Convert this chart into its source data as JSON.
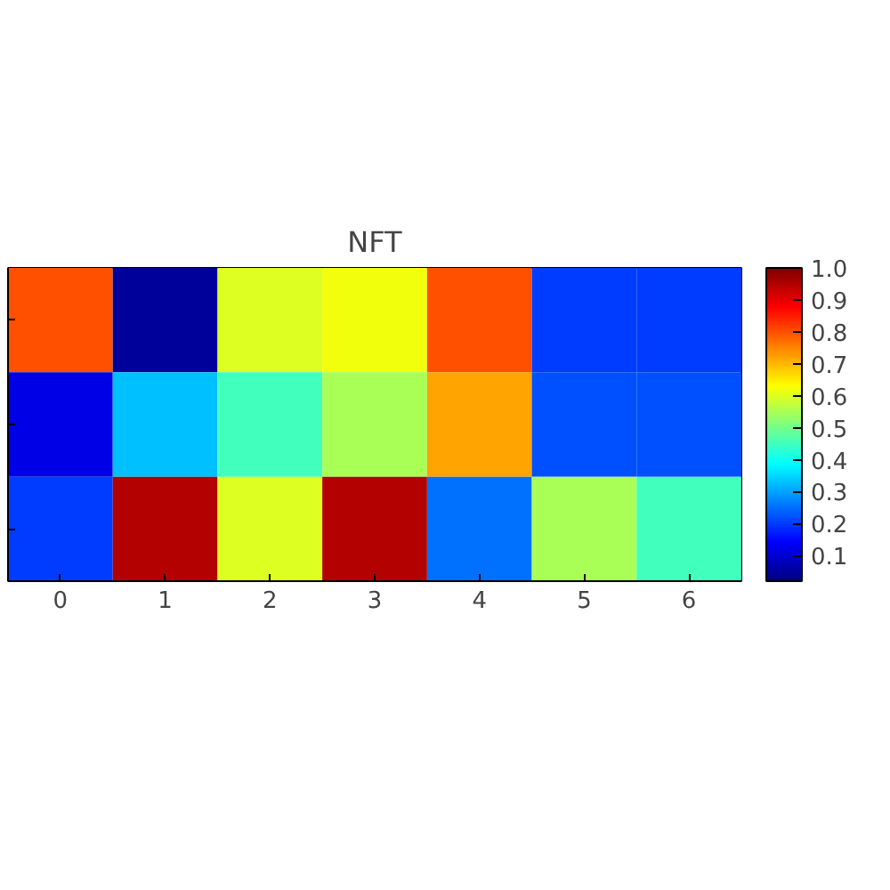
{
  "chart_data": {
    "type": "heatmap",
    "title": "NFT",
    "categories": [
      "0",
      "1",
      "2",
      "3",
      "4",
      "5",
      "6"
    ],
    "y_categories": [
      null,
      null,
      null
    ],
    "cells": [
      [
        0.8,
        0.05,
        0.6,
        0.62,
        0.8,
        0.2,
        0.2
      ],
      [
        0.12,
        0.33,
        0.45,
        0.55,
        0.72,
        0.22,
        0.22
      ],
      [
        0.2,
        0.95,
        0.6,
        0.95,
        0.25,
        0.55,
        0.45
      ]
    ],
    "clim": [
      0.02,
      1.0
    ],
    "cticks": [
      0.1,
      0.2,
      0.3,
      0.4,
      0.5,
      0.6,
      0.7,
      0.8,
      0.9,
      {
        "value": 1.0,
        "label": "1.0"
      }
    ],
    "tick_labels": "x",
    "grid": false
  }
}
